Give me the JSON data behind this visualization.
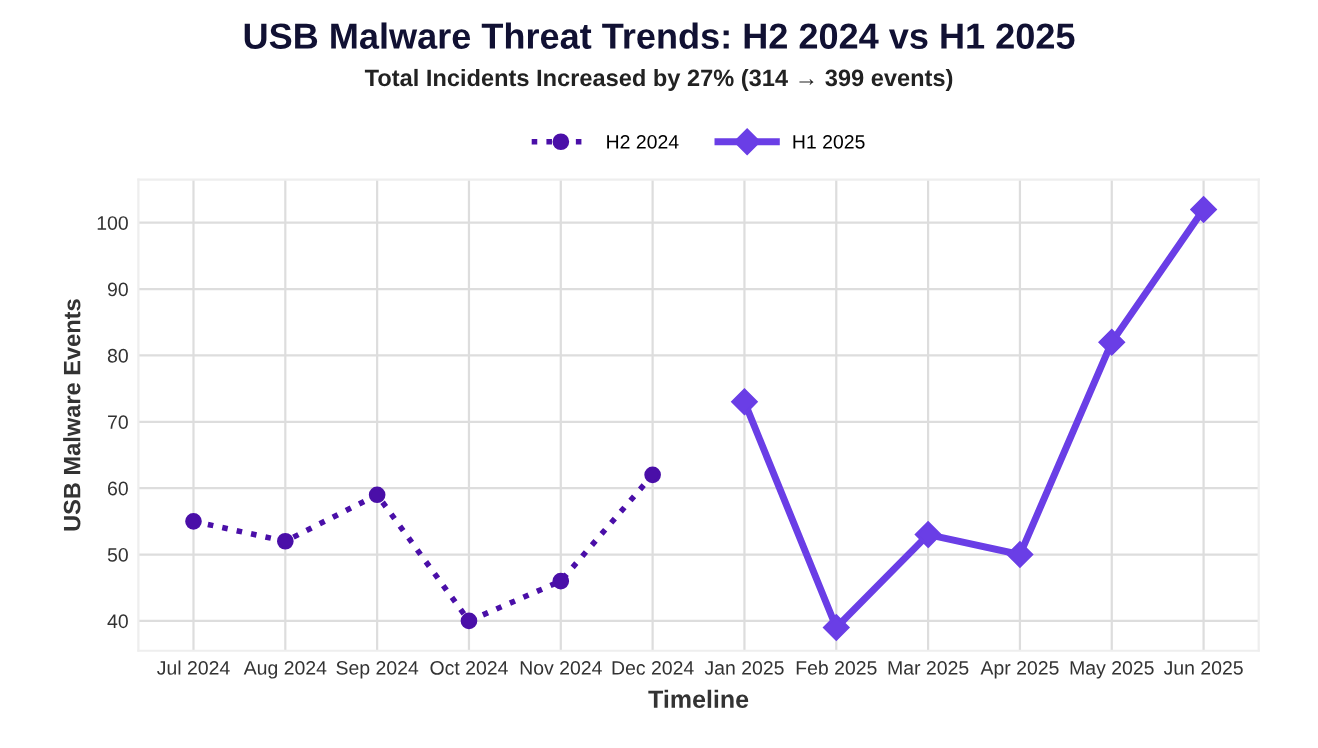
{
  "chart_data": {
    "type": "line",
    "title": "USB Malware Threat Trends: H2 2024 vs H1 2025",
    "subtitle": "Total Incidents Increased by 27% (314 → 399 events)",
    "xlabel": "Timeline",
    "ylabel": "USB Malware Events",
    "categories": [
      "Jul 2024",
      "Aug 2024",
      "Sep 2024",
      "Oct 2024",
      "Nov 2024",
      "Dec 2024",
      "Jan 2025",
      "Feb 2025",
      "Mar 2025",
      "Apr 2025",
      "May 2025",
      "Jun 2025"
    ],
    "series": [
      {
        "name": "H2 2024",
        "color": "#4a0fa8",
        "marker": "circle",
        "line_style": "dotted",
        "values": [
          55,
          52,
          59,
          40,
          46,
          62,
          null,
          null,
          null,
          null,
          null,
          null
        ]
      },
      {
        "name": "H1 2025",
        "color": "#6a3ee6",
        "marker": "diamond",
        "line_style": "solid",
        "values": [
          null,
          null,
          null,
          null,
          null,
          null,
          73,
          39,
          53,
          50,
          82,
          102
        ]
      }
    ],
    "ylim": [
      35.5,
      106.5
    ],
    "yticks": [
      40,
      50,
      60,
      70,
      80,
      90,
      100
    ],
    "grid": true,
    "legend": "top"
  }
}
